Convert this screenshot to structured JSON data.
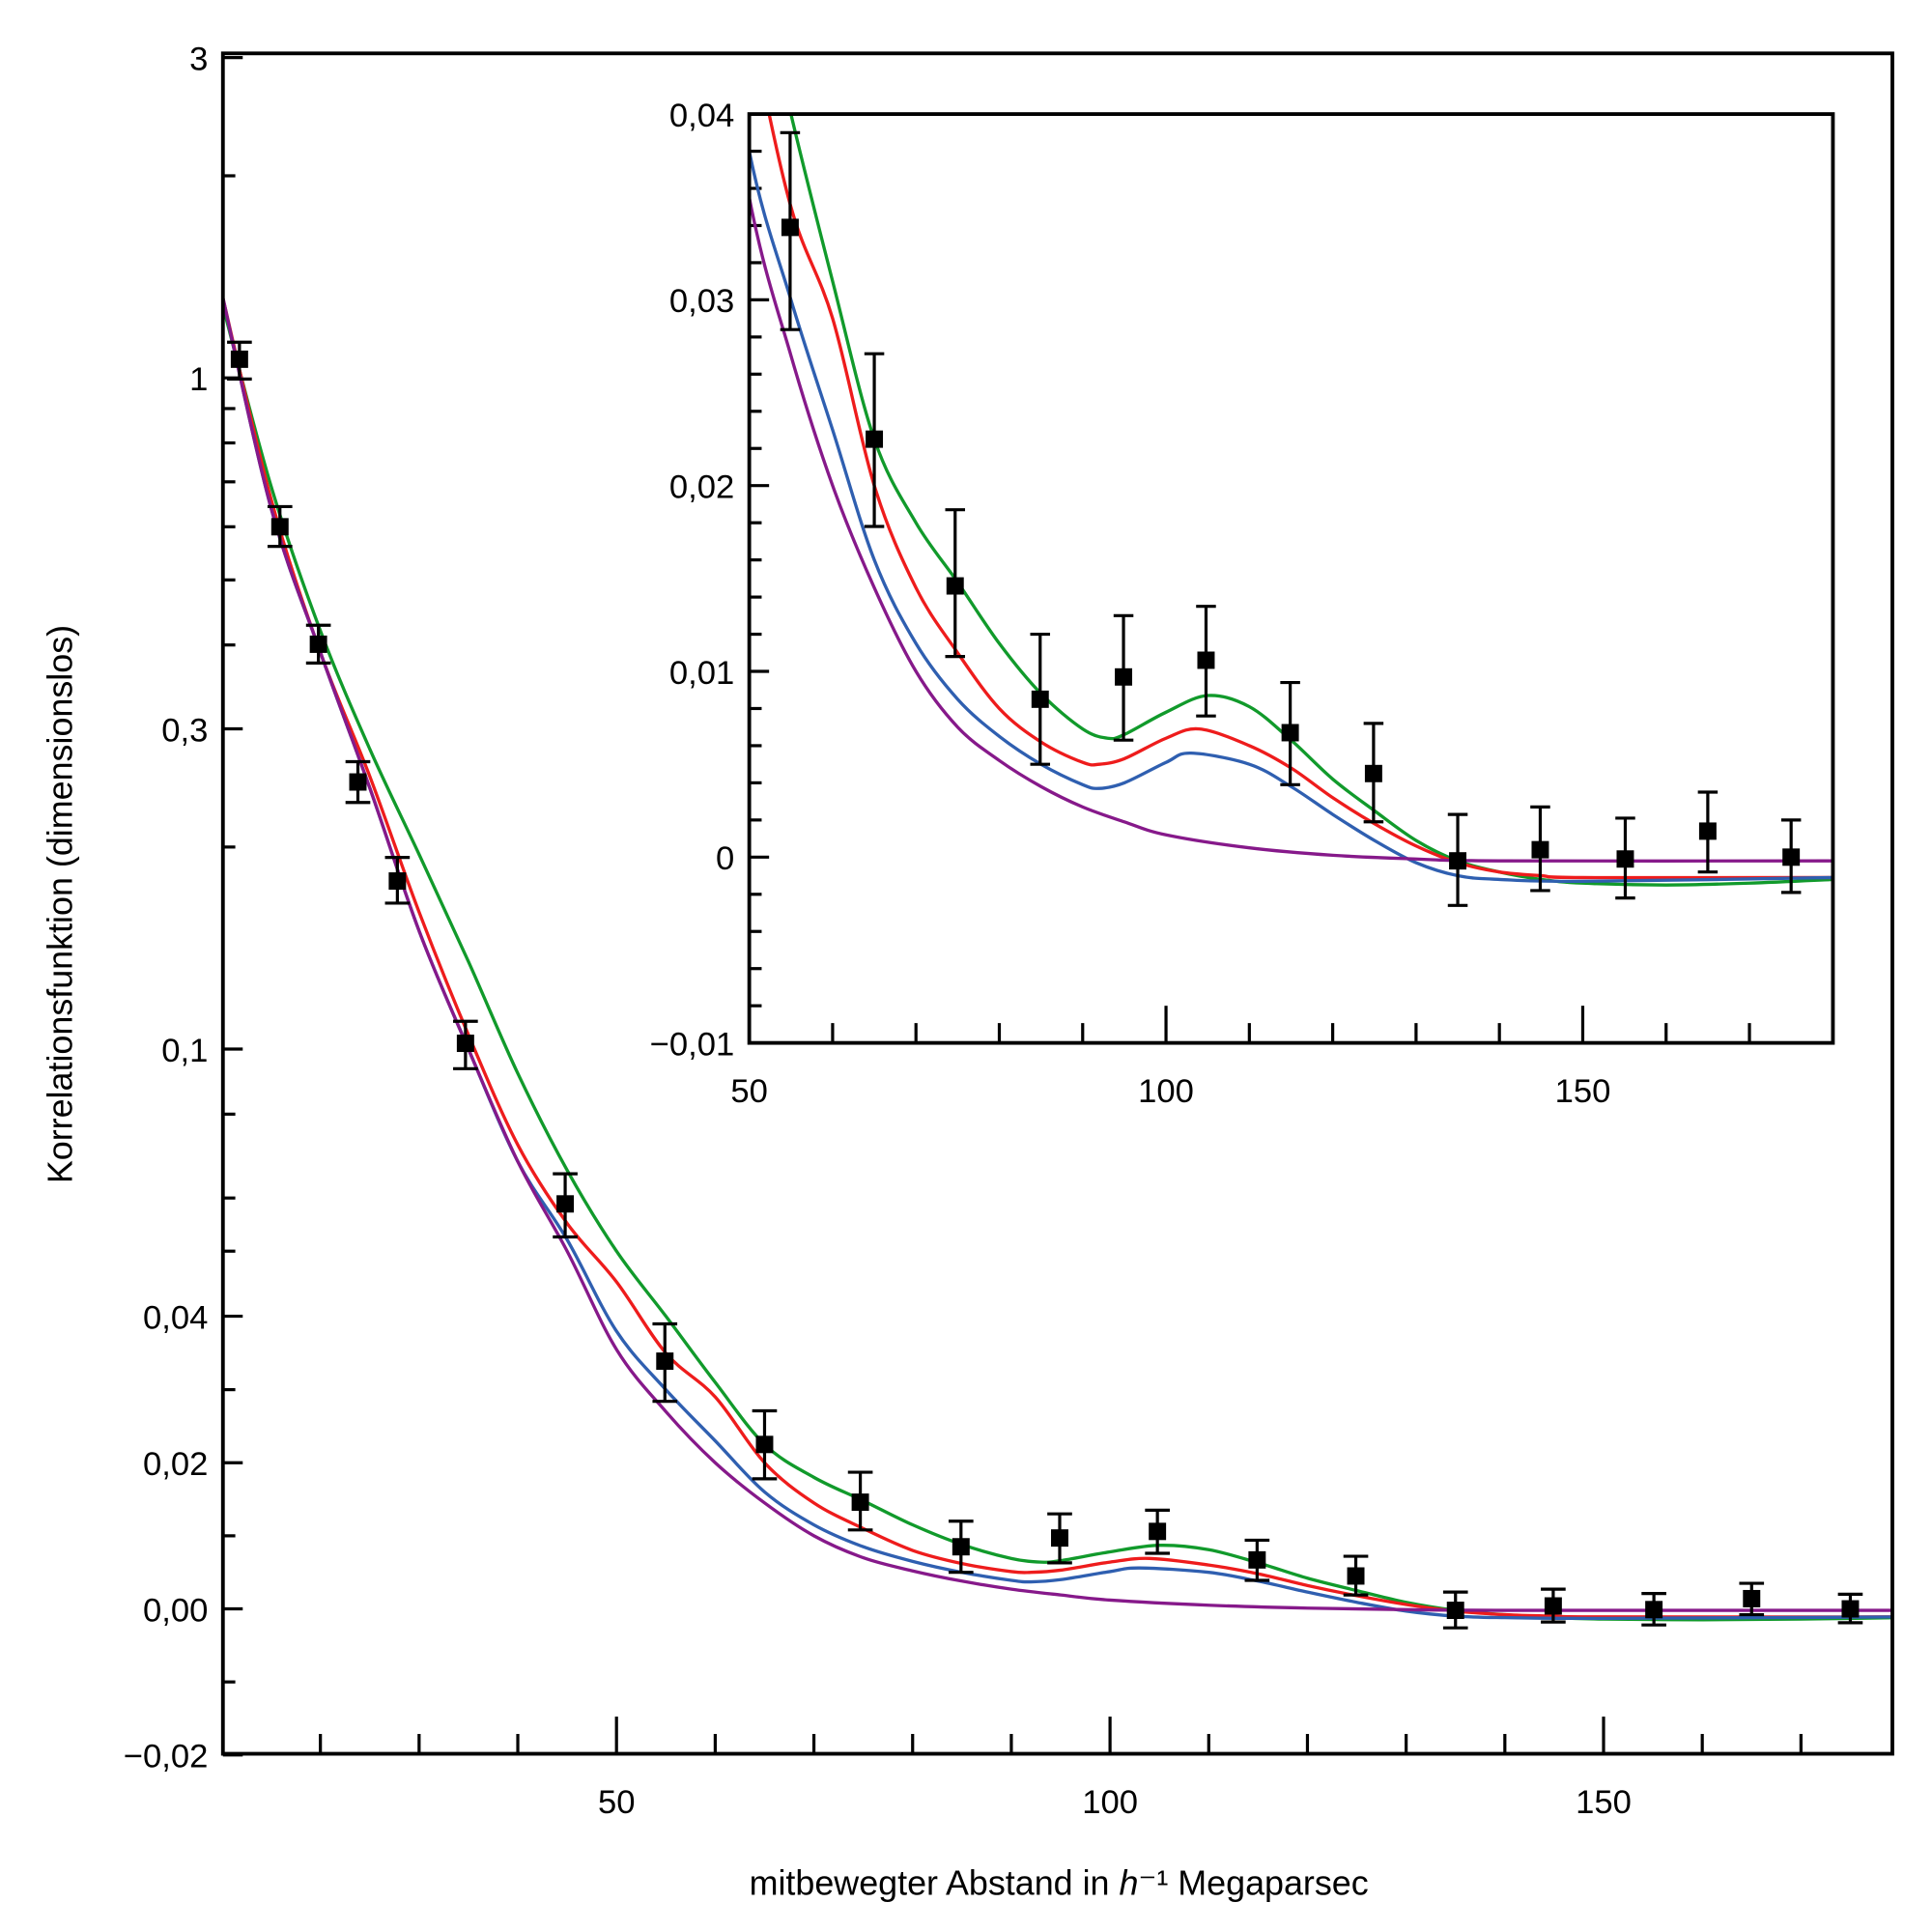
{
  "chart_data": [
    {
      "type": "line",
      "panel": "main",
      "xlabel_parts": [
        "mitbewegter Abstand in ",
        "h",
        "⁻¹",
        " Megaparsec"
      ],
      "ylabel": "Korrelationsfunktion (dimensionslos)",
      "xlim": [
        10,
        180
      ],
      "ylim": [
        -0.02,
        3
      ],
      "y_scale": "logarithmic above 0.04, linear from -0.02 to 0.04",
      "x_ticks": [
        {
          "v": 50,
          "label": "50"
        },
        {
          "v": 100,
          "label": "100"
        },
        {
          "v": 150,
          "label": "150"
        }
      ],
      "x_minor_ticks": [
        20,
        30,
        40,
        60,
        70,
        80,
        90,
        110,
        120,
        130,
        140,
        160,
        170
      ],
      "y_ticks": [
        {
          "v": 3,
          "label": "3"
        },
        {
          "v": 1,
          "label": "1"
        },
        {
          "v": 0.3,
          "label": "0,3"
        },
        {
          "v": 0.1,
          "label": "0,1"
        },
        {
          "v": 0.04,
          "label": "0,04"
        },
        {
          "v": 0.02,
          "label": "0,02"
        },
        {
          "v": 0,
          "label": "0,00"
        },
        {
          "v": -0.02,
          "label": "−0,02"
        }
      ],
      "y_minor_ticks": [
        2,
        0.9,
        0.8,
        0.7,
        0.6,
        0.5,
        0.4,
        0.2,
        0.08,
        0.06,
        0.05,
        0.03,
        0.01,
        -0.01
      ],
      "grid": false
    },
    {
      "type": "line",
      "panel": "inset",
      "xlim": [
        50,
        180
      ],
      "ylim": [
        -0.01,
        0.04
      ],
      "x_ticks": [
        {
          "v": 50,
          "label": "50"
        },
        {
          "v": 100,
          "label": "100"
        },
        {
          "v": 150,
          "label": "150"
        }
      ],
      "x_minor_ticks": [
        60,
        70,
        80,
        90,
        110,
        120,
        130,
        140,
        160,
        170
      ],
      "y_ticks": [
        {
          "v": 0.04,
          "label": "0,04"
        },
        {
          "v": 0.03,
          "label": "0,03"
        },
        {
          "v": 0.02,
          "label": "0,02"
        },
        {
          "v": 0.01,
          "label": "0,01"
        },
        {
          "v": 0,
          "label": "0"
        },
        {
          "v": -0.01,
          "label": "−0,01"
        }
      ],
      "y_minor_ticks": [
        0.038,
        0.036,
        0.034,
        0.032,
        0.028,
        0.026,
        0.024,
        0.022,
        0.018,
        0.016,
        0.014,
        0.012,
        0.008,
        0.006,
        0.004,
        0.002,
        -0.002,
        -0.004,
        -0.006,
        -0.008
      ],
      "grid": false
    }
  ],
  "data_points": [
    {
      "x": 11.8,
      "y": 1.066,
      "hi": 1.13,
      "lo": 0.996
    },
    {
      "x": 15.9,
      "y": 0.6,
      "hi": 0.643,
      "lo": 0.561
    },
    {
      "x": 19.8,
      "y": 0.401,
      "hi": 0.428,
      "lo": 0.376
    },
    {
      "x": 23.8,
      "y": 0.25,
      "hi": 0.268,
      "lo": 0.233
    },
    {
      "x": 27.8,
      "y": 0.178,
      "hi": 0.193,
      "lo": 0.165
    },
    {
      "x": 34.7,
      "y": 0.102,
      "hi": 0.11,
      "lo": 0.0935
    },
    {
      "x": 44.8,
      "y": 0.0588,
      "hi": 0.0652,
      "lo": 0.0525
    },
    {
      "x": 54.9,
      "y": 0.0339,
      "hi": 0.039,
      "lo": 0.0284
    },
    {
      "x": 65.0,
      "y": 0.0225,
      "hi": 0.0271,
      "lo": 0.0178
    },
    {
      "x": 74.7,
      "y": 0.0146,
      "hi": 0.0187,
      "lo": 0.0108
    },
    {
      "x": 84.9,
      "y": 0.0085,
      "hi": 0.012,
      "lo": 0.005
    },
    {
      "x": 94.9,
      "y": 0.0097,
      "hi": 0.013,
      "lo": 0.0063
    },
    {
      "x": 104.8,
      "y": 0.0106,
      "hi": 0.0135,
      "lo": 0.0076
    },
    {
      "x": 114.9,
      "y": 0.0067,
      "hi": 0.0094,
      "lo": 0.0039
    },
    {
      "x": 124.9,
      "y": 0.0045,
      "hi": 0.0072,
      "lo": 0.0019
    },
    {
      "x": 135.0,
      "y": -0.0002,
      "hi": 0.0023,
      "lo": -0.0026
    },
    {
      "x": 144.9,
      "y": 0.0004,
      "hi": 0.0027,
      "lo": -0.0018
    },
    {
      "x": 155.1,
      "y": -0.0001,
      "hi": 0.0021,
      "lo": -0.0022
    },
    {
      "x": 165.0,
      "y": 0.0014,
      "hi": 0.0035,
      "lo": -0.0008
    },
    {
      "x": 175.0,
      "y": 0.0,
      "hi": 0.002,
      "lo": -0.0019
    }
  ],
  "series": [
    {
      "color": "#119a2b",
      "x": [
        10,
        15,
        20,
        25,
        30,
        35,
        40,
        45,
        50,
        55,
        60,
        65,
        70,
        75,
        80,
        85,
        90,
        93,
        95,
        100,
        105,
        110,
        115,
        120,
        125,
        130,
        135,
        140,
        145,
        150,
        160,
        170,
        180
      ],
      "y": [
        1.3,
        0.69,
        0.42,
        0.28,
        0.195,
        0.135,
        0.092,
        0.066,
        0.05,
        0.04,
        0.031,
        0.0225,
        0.018,
        0.0148,
        0.0115,
        0.0088,
        0.0069,
        0.0064,
        0.0066,
        0.0078,
        0.0087,
        0.0081,
        0.0063,
        0.0042,
        0.0025,
        0.0009,
        -0.0002,
        -0.0008,
        -0.0012,
        -0.0014,
        -0.0015,
        -0.0014,
        -0.0012
      ]
    },
    {
      "color": "#ee1c1c",
      "x": [
        10,
        15,
        20,
        25,
        30,
        35,
        40,
        45,
        50,
        55,
        60,
        65,
        70,
        75,
        80,
        85,
        90,
        92,
        95,
        100,
        104,
        110,
        115,
        120,
        125,
        130,
        135,
        140,
        145,
        150,
        180
      ],
      "y": [
        1.34,
        0.66,
        0.39,
        0.255,
        0.16,
        0.105,
        0.072,
        0.055,
        0.045,
        0.035,
        0.029,
        0.02,
        0.0145,
        0.011,
        0.008,
        0.0062,
        0.0051,
        0.005,
        0.0053,
        0.0064,
        0.0069,
        0.006,
        0.0048,
        0.0032,
        0.0018,
        0.0006,
        -0.0003,
        -0.0008,
        -0.001,
        -0.0011,
        -0.0011
      ]
    },
    {
      "color": "#2f5fb0",
      "x": [
        10,
        15,
        20,
        25,
        30,
        35,
        40,
        45,
        50,
        55,
        60,
        65,
        70,
        75,
        80,
        85,
        90,
        92,
        95,
        100,
        103,
        110,
        115,
        120,
        125,
        130,
        135,
        140,
        150,
        180
      ],
      "y": [
        1.34,
        0.64,
        0.39,
        0.245,
        0.15,
        0.1,
        0.068,
        0.052,
        0.038,
        0.03,
        0.023,
        0.016,
        0.0115,
        0.0085,
        0.0065,
        0.005,
        0.0039,
        0.0037,
        0.004,
        0.0051,
        0.0056,
        0.005,
        0.0038,
        0.0023,
        0.0009,
        -0.0003,
        -0.001,
        -0.0012,
        -0.0013,
        -0.0011
      ]
    },
    {
      "color": "#86198a",
      "x": [
        10,
        15,
        20,
        25,
        30,
        35,
        40,
        45,
        50,
        55,
        60,
        65,
        70,
        75,
        80,
        85,
        90,
        95,
        100,
        110,
        120,
        130,
        140,
        180
      ],
      "y": [
        1.34,
        0.64,
        0.39,
        0.245,
        0.15,
        0.1,
        0.068,
        0.05,
        0.0355,
        0.027,
        0.02,
        0.0145,
        0.01,
        0.007,
        0.0052,
        0.0038,
        0.0027,
        0.0019,
        0.0012,
        0.0005,
        0.0001,
        -0.0001,
        -0.0002,
        -0.0002
      ]
    }
  ]
}
